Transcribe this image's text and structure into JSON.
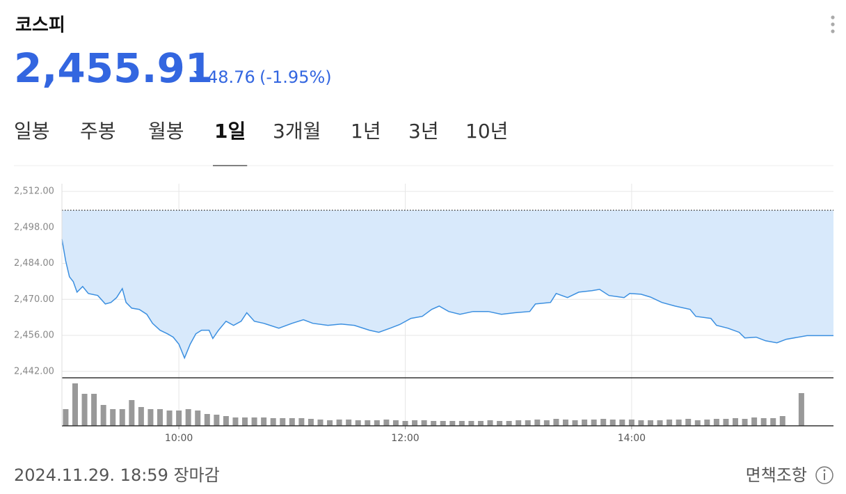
{
  "header": {
    "title": "코스피",
    "price": "2,455.91",
    "change": "48.76",
    "change_percent": "(-1.95%)"
  },
  "tabs": [
    "일봉",
    "주봉",
    "월봉",
    "1일",
    "3개월",
    "1년",
    "3년",
    "10년"
  ],
  "active_tab": 3,
  "footer": {
    "timestamp": "2024.11.29. 18:59 장마감",
    "disclaimer": "면책조항"
  },
  "chart_data": {
    "type": "line",
    "xlim": [
      538,
      947
    ],
    "xticks": [
      {
        "value": 600,
        "label": "10:00"
      },
      {
        "value": 720,
        "label": "12:00"
      },
      {
        "value": 840,
        "label": "14:00"
      }
    ],
    "ylim": [
      2439.5,
      2515
    ],
    "yticks": [
      {
        "value": 2442,
        "label": "2,442.00"
      },
      {
        "value": 2456,
        "label": "2,456.00"
      },
      {
        "value": 2470,
        "label": "2,470.00"
      },
      {
        "value": 2484,
        "label": "2,484.00"
      },
      {
        "value": 2498,
        "label": "2,498.00"
      },
      {
        "value": 2512,
        "label": "2,512.00"
      }
    ],
    "grid": true,
    "prev_close": 2504.67,
    "x": [
      538,
      540,
      542,
      544,
      546,
      549,
      552,
      557,
      561,
      564,
      567,
      570,
      572,
      575,
      579,
      583,
      586,
      590,
      594,
      597,
      600,
      603,
      606,
      609,
      612,
      616,
      618,
      621,
      625,
      629,
      633,
      636,
      640,
      645,
      653,
      660,
      666,
      671,
      679,
      686,
      693,
      701,
      706,
      712,
      717,
      723,
      729,
      734,
      738,
      743,
      749,
      756,
      764,
      771,
      778,
      786,
      789,
      797,
      800,
      806,
      812,
      819,
      823,
      828,
      836,
      839,
      845,
      850,
      856,
      863,
      871,
      874,
      882,
      885,
      891,
      897,
      900,
      906,
      911,
      917,
      922,
      933,
      947
    ],
    "series": [
      {
        "color": "#3b8fe0",
        "fill": "#d8e9fb",
        "values": [
          2493.4,
          2485,
          2478.8,
          2476.9,
          2472.8,
          2475,
          2472.3,
          2471.5,
          2468.2,
          2468.8,
          2470.7,
          2474.2,
          2468.8,
          2466.6,
          2466.1,
          2464.2,
          2460.7,
          2458,
          2456.6,
          2455.3,
          2452.6,
          2447.2,
          2452.6,
          2456.6,
          2458,
          2458,
          2454.8,
          2458,
          2461.5,
          2459.9,
          2461.5,
          2464.8,
          2461.5,
          2460.7,
          2458.8,
          2460.7,
          2462.1,
          2460.7,
          2459.9,
          2460.4,
          2459.9,
          2458,
          2457.2,
          2458.8,
          2460.2,
          2462.6,
          2463.4,
          2466.1,
          2467.4,
          2465.3,
          2464.2,
          2465.3,
          2465.3,
          2464.2,
          2464.8,
          2465.3,
          2468.2,
          2468.8,
          2472.3,
          2470.7,
          2472.8,
          2473.4,
          2473.9,
          2471.5,
          2470.7,
          2472.3,
          2472,
          2470.9,
          2468.8,
          2467.4,
          2466.1,
          2463.4,
          2462.6,
          2459.9,
          2458.8,
          2457.2,
          2455,
          2455.3,
          2453.9,
          2453.1,
          2454.5,
          2455.9,
          2455.9
        ]
      }
    ],
    "volume": {
      "color": "#999999",
      "ylim": [
        0,
        65
      ],
      "x": [
        540,
        545,
        550,
        555,
        560,
        565,
        570,
        575,
        580,
        585,
        590,
        595,
        600,
        605,
        610,
        615,
        620,
        625,
        630,
        635,
        640,
        645,
        650,
        655,
        660,
        665,
        670,
        675,
        680,
        685,
        690,
        695,
        700,
        705,
        710,
        715,
        720,
        725,
        730,
        735,
        740,
        745,
        750,
        755,
        760,
        765,
        770,
        775,
        780,
        785,
        790,
        795,
        800,
        805,
        810,
        815,
        820,
        825,
        830,
        835,
        840,
        845,
        850,
        855,
        860,
        865,
        870,
        875,
        880,
        885,
        890,
        895,
        900,
        905,
        910,
        915,
        920,
        930
      ],
      "values": [
        24,
        61,
        46,
        46,
        30,
        24,
        24,
        37,
        27,
        24,
        24,
        22,
        22,
        24,
        22,
        17,
        16,
        14,
        12,
        12,
        12,
        12,
        11,
        11,
        11,
        11,
        10,
        9,
        8,
        9,
        9,
        8,
        8,
        8,
        9,
        8,
        7,
        8,
        8,
        7,
        7,
        7,
        7,
        7,
        7,
        8,
        7,
        7,
        8,
        8,
        9,
        8,
        10,
        9,
        8,
        9,
        9,
        10,
        9,
        9,
        9,
        8,
        8,
        8,
        9,
        9,
        10,
        8,
        9,
        10,
        10,
        11,
        10,
        12,
        11,
        11,
        14,
        47
      ]
    }
  }
}
